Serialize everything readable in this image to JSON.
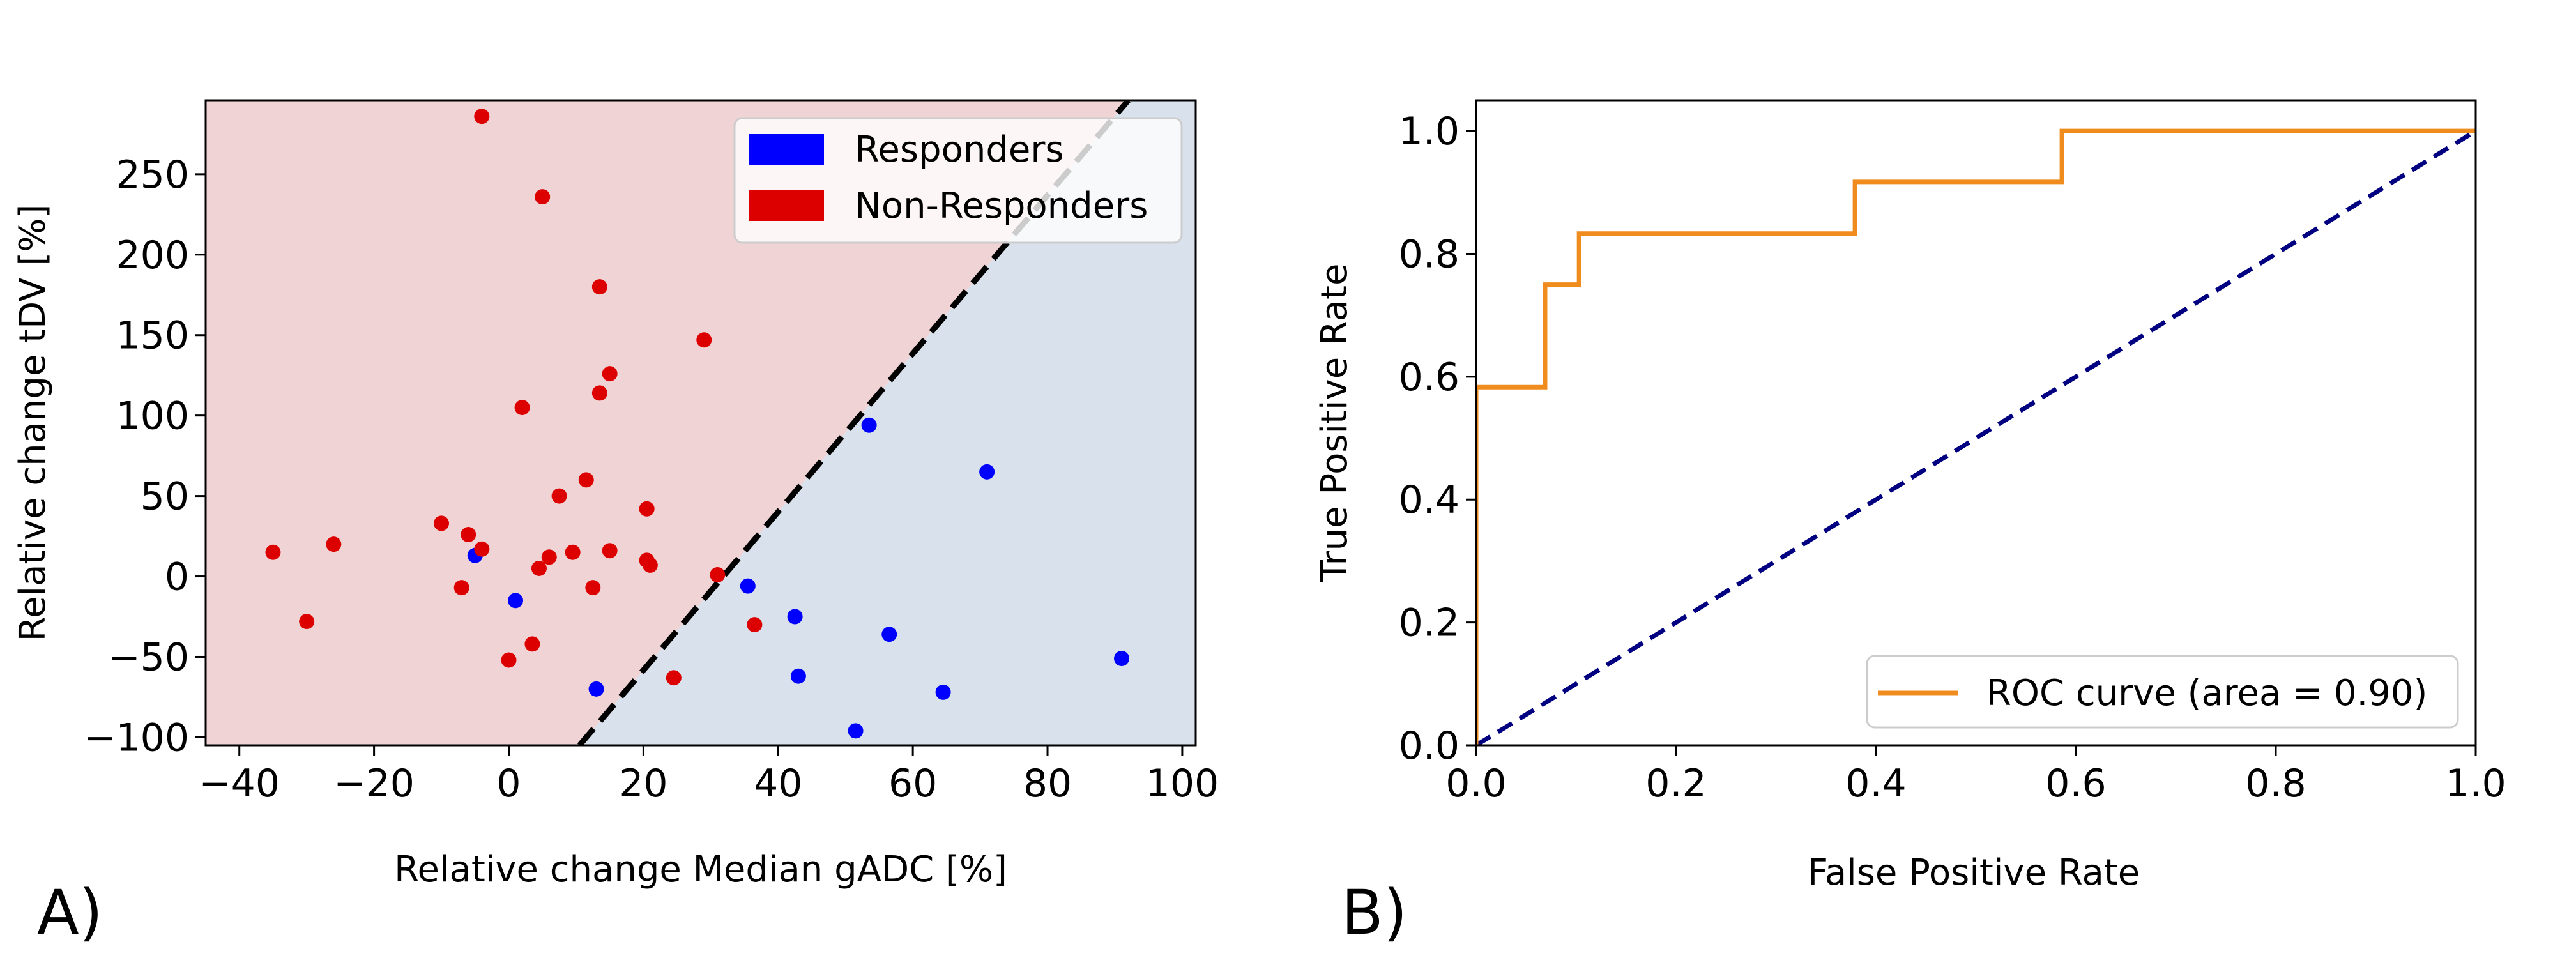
{
  "figure": {
    "panel_a_label": "A)",
    "panel_b_label": "B)"
  },
  "chart_data": [
    {
      "type": "scatter",
      "panel": "A)",
      "title": "",
      "xlabel": "Relative change Median gADC [%]",
      "ylabel": "Relative change tDV [%]",
      "xlim": [
        -45,
        102
      ],
      "ylim": [
        -105,
        296
      ],
      "xticks": [
        -40,
        -20,
        0,
        20,
        40,
        60,
        80,
        100
      ],
      "yticks": [
        -100,
        -50,
        0,
        50,
        100,
        150,
        200,
        250
      ],
      "grid": false,
      "legend_position": "top-right",
      "regions": [
        {
          "name": "Non-Responders region",
          "color": "#f0d3d4"
        },
        {
          "name": "Responders region",
          "color": "#d9e2ec"
        }
      ],
      "decision_boundary": {
        "x": [
          10.5,
          92
        ],
        "y": [
          -105,
          296
        ],
        "color": "#000000",
        "style": "dashed"
      },
      "series": [
        {
          "name": "Responders",
          "color": "#0000ff",
          "points": [
            [
              -5,
              13
            ],
            [
              1,
              -15
            ],
            [
              13,
              -70
            ],
            [
              35.5,
              -6
            ],
            [
              42.5,
              -25
            ],
            [
              43,
              -62
            ],
            [
              51.5,
              -96
            ],
            [
              53.5,
              94
            ],
            [
              56.5,
              -36
            ],
            [
              64.5,
              -72
            ],
            [
              71,
              65
            ],
            [
              91,
              -51
            ]
          ]
        },
        {
          "name": "Non-Responders",
          "color": "#dd0000",
          "points": [
            [
              -35,
              15
            ],
            [
              -30,
              -28
            ],
            [
              -26,
              20
            ],
            [
              -10,
              33
            ],
            [
              -7,
              -7
            ],
            [
              -6,
              26
            ],
            [
              -4,
              17
            ],
            [
              -4,
              286
            ],
            [
              0,
              -52
            ],
            [
              2,
              105
            ],
            [
              3.5,
              -42
            ],
            [
              4.5,
              5
            ],
            [
              5,
              236
            ],
            [
              6,
              12
            ],
            [
              7.5,
              50
            ],
            [
              9.5,
              15
            ],
            [
              11.5,
              60
            ],
            [
              12.5,
              -7
            ],
            [
              13.5,
              114
            ],
            [
              13.5,
              180
            ],
            [
              15,
              16
            ],
            [
              15,
              126
            ],
            [
              20.5,
              10
            ],
            [
              20.5,
              42
            ],
            [
              21,
              7
            ],
            [
              24.5,
              -63
            ],
            [
              29,
              147
            ],
            [
              31,
              1
            ],
            [
              36.5,
              -30
            ]
          ]
        }
      ]
    },
    {
      "type": "line",
      "panel": "B)",
      "title": "",
      "xlabel": "False Positive Rate",
      "ylabel": "True Positive Rate",
      "xlim": [
        0.0,
        1.0
      ],
      "ylim": [
        0.0,
        1.05
      ],
      "xticks": [
        0.0,
        0.2,
        0.4,
        0.6,
        0.8,
        1.0
      ],
      "yticks": [
        0.0,
        0.2,
        0.4,
        0.6,
        0.8,
        1.0
      ],
      "tick_labels": [
        "0.0",
        "0.2",
        "0.4",
        "0.6",
        "0.8",
        "1.0"
      ],
      "grid": false,
      "legend_position": "bottom-right",
      "series": [
        {
          "name": "ROC curve (area = 0.90)",
          "color": "#f08c1e",
          "style": "solid",
          "x": [
            0.0,
            0.0,
            0.069,
            0.069,
            0.103,
            0.103,
            0.379,
            0.379,
            0.586,
            0.586,
            1.0
          ],
          "y": [
            0.0,
            0.583,
            0.583,
            0.75,
            0.75,
            0.833,
            0.833,
            0.917,
            0.917,
            1.0,
            1.0
          ]
        },
        {
          "name": "chance",
          "color": "#000080",
          "style": "dashed",
          "x": [
            0.0,
            1.0
          ],
          "y": [
            0.0,
            1.0
          ]
        }
      ]
    }
  ]
}
